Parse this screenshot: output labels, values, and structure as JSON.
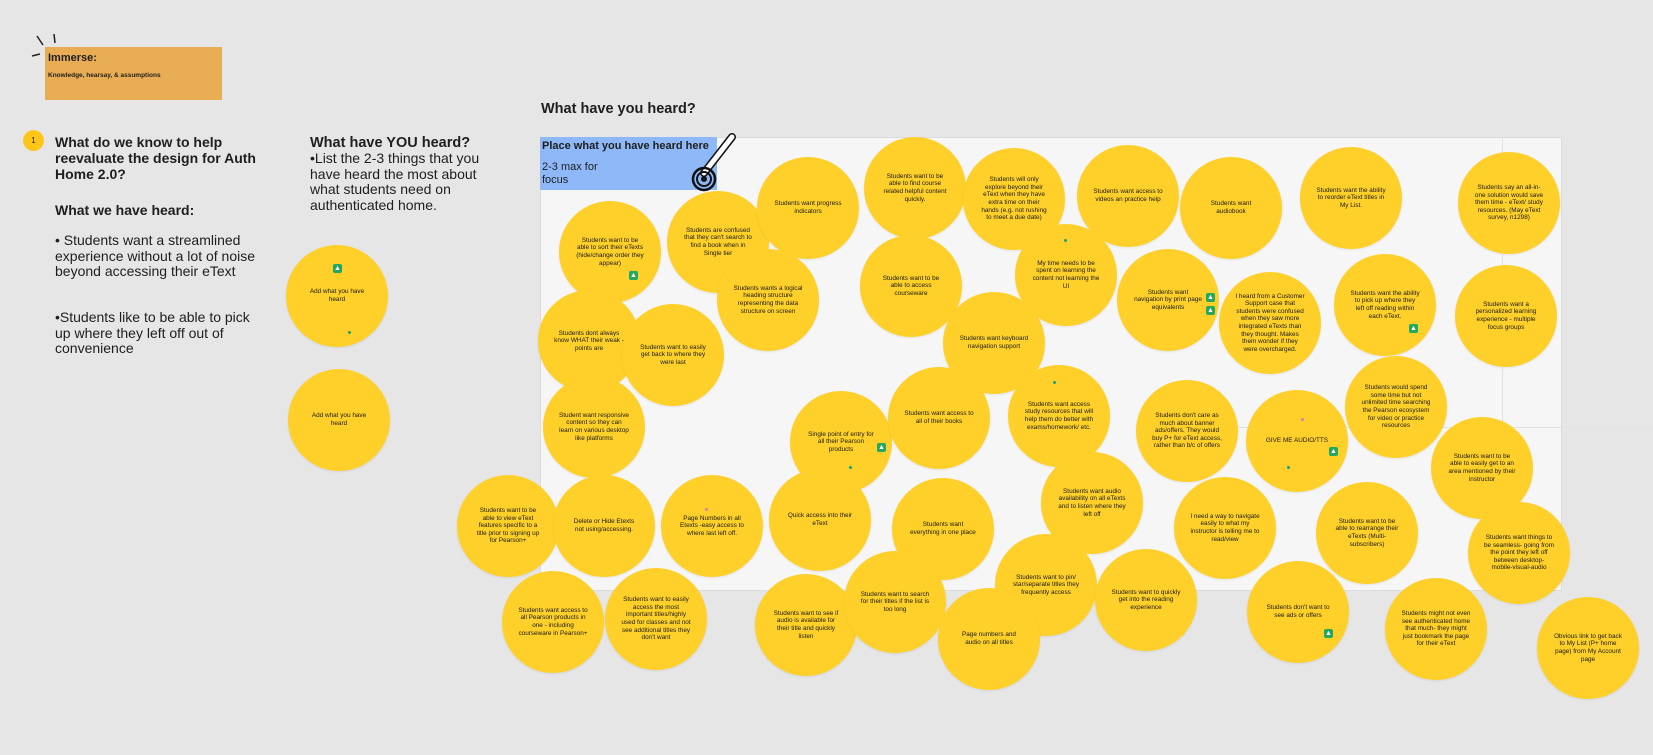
{
  "header": {
    "title": "Immerse:",
    "subtitle": "Knowledge, hearsay, & assumptions"
  },
  "left_panel": {
    "badge": "1",
    "question": "What do we know to help reevaluate the design for Auth Home 2.0?",
    "heard_title": "What we have heard:",
    "heard_items": [
      "• Students want a streamlined experience without a lot of noise beyond accessing their eText",
      "•Students like to be able to pick up where they left off out of convenience"
    ]
  },
  "you_panel": {
    "title": "What have YOU heard?",
    "body": "•List the 2-3 things that you have heard the most about what students need on authenticated home.",
    "stickies": [
      "Add what you have heard",
      "Add what you have heard"
    ]
  },
  "board": {
    "title": "What have you heard?",
    "place_title": "Place what you have heard here",
    "place_sub": "2-3 max for focus",
    "stickies": [
      "Students want to be able to sort their eTexts (hide/change order they appear)",
      "Students are confused that they can't search to find a book when in Single tier",
      "Students want progress indicators",
      "Students want to be able to find course related helpful content quickly.",
      "Students will only explore beyond their eText when they have extra time on their hands (e.g. not rushing to meet a due date)",
      "Students want access to videos an practice help",
      "Students want audiobook",
      "Students want the ability to reorder eText titles in My List.",
      "Students say an all-in-one solution would save them time - eText/ study resources. (May eText survey, n1298)",
      "Students wants a logical heading structure representing the data structure on screen",
      "Students want to be able to access courseware",
      "My time needs to be spent on learning the content not learning the UI",
      "Students want navigation by print page equivalents",
      "I heard from a Customer Support case that students were confused when they saw more integrated eTexts than they thought. Makes them wonder if they were overcharged.",
      "Students want the ability to pick up where they left off reading within each eText.",
      "Students want a personalized learning experience - multiple focus groups",
      "Students dont always know WHAT their weak -points are",
      "Students want to easily get back to where they were last",
      "Students want keyboard navigation support",
      "Students would spend some time but not unlimited time searching the Pearson ecosystem for video or practice resources",
      "Student want responsive content so they can learn on various desktop like platforms",
      "Single point of entry for all their Pearson products",
      "Students want access to all of their books",
      "Students want access study resources that will help them do better with exams/homework/ etc.",
      "Students don't care as much about banner ads/offers. They would buy P+ for eText access, rather than b/c of offers",
      "GIVE ME AUDIO/TTS",
      "Students want to be able to easily get to an area mentioned by their instructor",
      "Students want to be able to view eText features specific to a title prior to signing up for Pearson+",
      "Delete or Hide Etexts not using/accessing.",
      "Page Numbers in all Etexts -easy access to where last left off.",
      "Quick access into their eText",
      "Students want everything in one place",
      "Students want audio availability on all eTexts and to listen where they left off",
      "I need a way to navigate easily to what my instructor is telling me to read/view",
      "Students want to be able to rearrange their eTexts (Multi-subscribers)",
      "Students want things to be seamless- going from the point they left off between desktop-mobile-visual-audio",
      "Students want access to all Pearson products in one - including courseware in Pearson+",
      "Students want to easily access the most important titles/highly used for classes and not see additional titles they don't want",
      "Students want to see if audio is available for their title and quickly listen",
      "Students want to search for their titles if the list is too long",
      "Students want to pin/ star/separate titles they frequently access",
      "Page numbers and audio on all titles",
      "Students want to quickly get into the reading experience",
      "Students don't want to see ads or offers",
      "Students might not even see authenticated home that much- they might just bookmark the page for their eText",
      "Obvious link to get back to My List (P+ home page) from My Account page"
    ]
  },
  "colors": {
    "sticky": "#ffd02a",
    "header_card": "#e8ad54",
    "place_card": "#8fb8f8",
    "thumb": "#24a860"
  },
  "icons": [
    "sparkle-icon",
    "pen-icon",
    "thumbs-up-icon"
  ]
}
